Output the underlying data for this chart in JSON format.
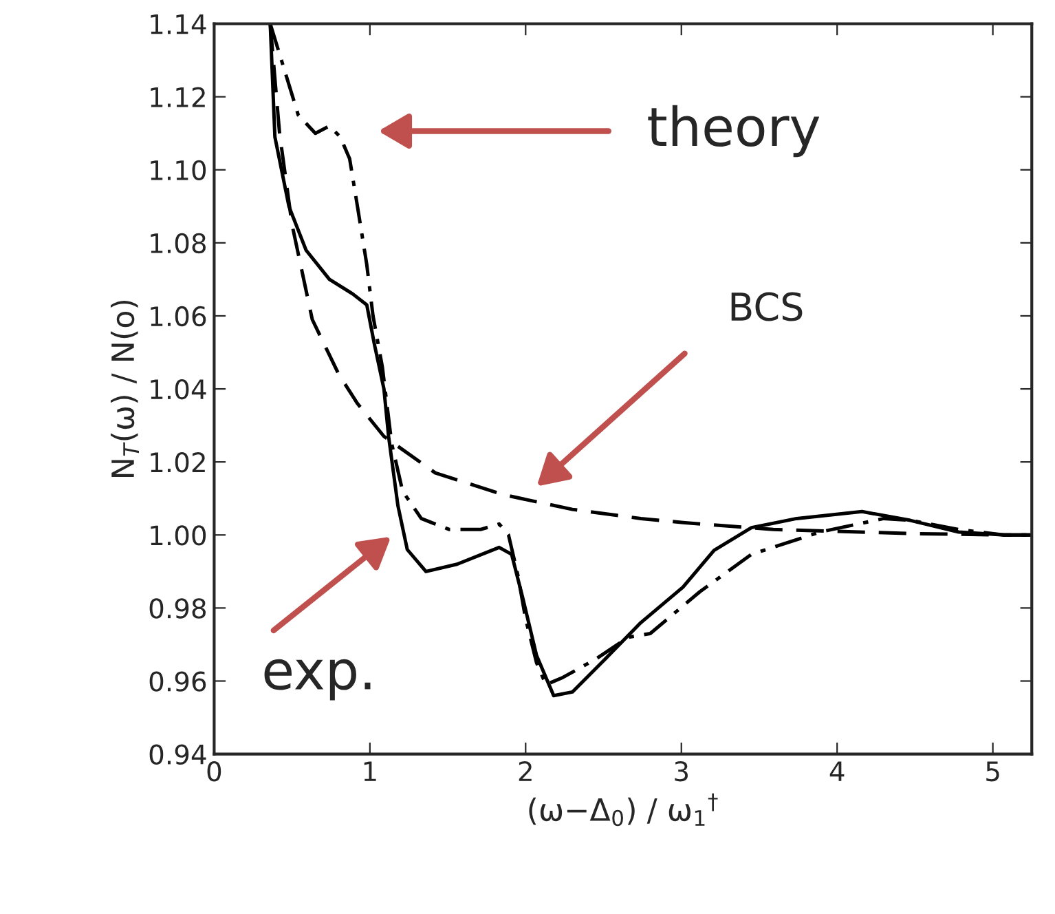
{
  "chart_data": {
    "type": "line",
    "xlabel": "(ω−Δ$_{0}$) / ω$_{1}$$^{†}$",
    "ylabel": "N$_{T}$(ω) / N(o)",
    "xlim": [
      0,
      5.25
    ],
    "ylim": [
      0.94,
      1.14
    ],
    "xticks": [
      0,
      1,
      2,
      3,
      4,
      5
    ],
    "yticks": [
      0.94,
      0.96,
      0.98,
      {
        "value": 1.0,
        "label": "1.00"
      },
      1.02,
      1.04,
      1.06,
      1.08,
      {
        "value": 1.1,
        "label": "1.10"
      },
      1.12,
      1.14
    ],
    "grid": false,
    "series": [
      {
        "color": "#000000",
        "line_style": "dashdot",
        "x": [
          0.36,
          0.54,
          0.65,
          0.74,
          0.81,
          0.87,
          0.92,
          0.98,
          1.02,
          1.08,
          1.14,
          1.21,
          1.33,
          1.51,
          1.71,
          1.83,
          1.89,
          1.95,
          2.0,
          2.07,
          2.13,
          2.24,
          2.45,
          2.66,
          2.8,
          3.12,
          3.45,
          3.89,
          4.3,
          4.47,
          4.78,
          5.07,
          5.25
        ],
        "values": [
          1.14,
          1.115,
          1.11,
          1.112,
          1.109,
          1.103,
          1.09,
          1.074,
          1.06,
          1.046,
          1.025,
          1.012,
          1.0045,
          1.0015,
          1.0015,
          1.003,
          1.0,
          0.989,
          0.977,
          0.965,
          0.959,
          0.961,
          0.966,
          0.972,
          0.973,
          0.9845,
          0.9947,
          1.0008,
          1.0045,
          1.004,
          1.0015,
          1.0,
          1.0
        ]
      },
      {
        "color": "#000000",
        "line_style": "solid",
        "x": [
          0.36,
          0.39,
          0.48,
          0.59,
          0.74,
          0.89,
          0.98,
          1.03,
          1.09,
          1.12,
          1.18,
          1.24,
          1.36,
          1.56,
          1.83,
          1.91,
          1.98,
          2.07,
          2.18,
          2.3,
          2.51,
          2.74,
          3.01,
          3.21,
          3.45,
          3.74,
          4.16,
          4.47,
          4.78,
          5.07,
          5.25
        ],
        "values": [
          1.14,
          1.109,
          1.09,
          1.078,
          1.07,
          1.066,
          1.063,
          1.052,
          1.04,
          1.027,
          1.008,
          0.996,
          0.99,
          0.992,
          0.9966,
          0.9947,
          0.983,
          0.967,
          0.956,
          0.957,
          0.966,
          0.976,
          0.9857,
          0.9958,
          1.002,
          1.0045,
          1.0064,
          1.004,
          1.0008,
          1.0,
          1.0
        ]
      },
      {
        "color": "#000000",
        "line_style": "dashed",
        "x": [
          0.36,
          0.42,
          0.5,
          0.63,
          0.8,
          0.92,
          1.09,
          1.42,
          1.86,
          2.3,
          2.74,
          3.01,
          3.59,
          4.47,
          5.07,
          5.25
        ],
        "values": [
          1.14,
          1.11,
          1.085,
          1.059,
          1.044,
          1.036,
          1.027,
          1.017,
          1.011,
          1.007,
          1.0045,
          1.0034,
          1.0015,
          1.0004,
          1.0,
          1.0
        ]
      }
    ],
    "annotations": [
      "theory",
      "BCS",
      "exp."
    ]
  }
}
